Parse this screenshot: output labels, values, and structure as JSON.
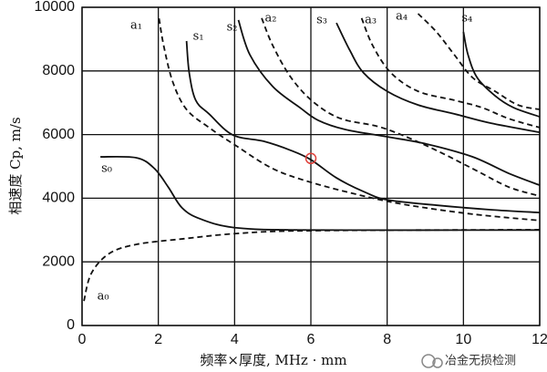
{
  "chart_data": {
    "type": "line",
    "y_label": "相速度 Cp, m/s",
    "x_label": "频率×厚度, MHz · mm",
    "watermark": "冶金无损检测",
    "xlim": [
      0,
      12
    ],
    "xticks": [
      0,
      2,
      4,
      6,
      8,
      10,
      12
    ],
    "ylim": [
      0,
      10000
    ],
    "yticks": [
      0,
      2000,
      4000,
      6000,
      8000,
      10000
    ],
    "grid": true,
    "series": [
      {
        "name": "a₀",
        "color": "#111111",
        "dashed": true,
        "x": [
          0.05,
          0.24,
          0.71,
          1.43,
          2.62,
          4.05,
          6,
          12
        ],
        "values": [
          770,
          1630,
          2260,
          2550,
          2720,
          2890,
          2980,
          3010
        ]
      },
      {
        "name": "s₀",
        "color": "#111111",
        "dashed": false,
        "x": [
          0.48,
          1.43,
          1.9,
          2.26,
          2.62,
          3.1,
          4.05,
          6,
          12
        ],
        "values": [
          5300,
          5270,
          4930,
          4350,
          3700,
          3350,
          3070,
          3000,
          3000
        ]
      },
      {
        "name": "a₁",
        "color": "#111111",
        "dashed": true,
        "x": [
          2.02,
          2.14,
          2.38,
          2.74,
          3.33,
          4.05,
          5,
          6,
          7.38,
          8.57,
          10.24,
          12
        ],
        "values": [
          9650,
          8800,
          7650,
          6790,
          6220,
          5640,
          4930,
          4500,
          4070,
          3780,
          3500,
          3300
        ]
      },
      {
        "name": "s₁",
        "color": "#111111",
        "dashed": false,
        "x": [
          2.74,
          2.81,
          2.98,
          3.33,
          3.95,
          4.76,
          5.48,
          6,
          6.67,
          7.38,
          8,
          9.29,
          10.7,
          12
        ],
        "values": [
          8940,
          7940,
          7080,
          6650,
          5990,
          5790,
          5500,
          5210,
          4640,
          4210,
          3950,
          3780,
          3640,
          3550
        ]
      },
      {
        "name": "s₂",
        "color": "#111111",
        "dashed": false,
        "x": [
          4.1,
          4.4,
          5,
          5.71,
          6.19,
          6.9,
          8,
          9.05,
          10.24,
          11.19,
          12
        ],
        "values": [
          9600,
          8510,
          7510,
          6850,
          6450,
          6160,
          5930,
          5700,
          5300,
          4780,
          4410
        ]
      },
      {
        "name": "a₂",
        "color": "#111111",
        "dashed": true,
        "x": [
          4.71,
          5,
          5.48,
          6.07,
          6.79,
          7.86,
          9.05,
          10.24,
          11.19,
          12
        ],
        "values": [
          9660,
          8800,
          7790,
          7020,
          6500,
          6220,
          5640,
          4930,
          4350,
          4070
        ]
      },
      {
        "name": "s₃",
        "color": "#111111",
        "dashed": false,
        "x": [
          6.67,
          7.02,
          7.38,
          8,
          8.81,
          9.76,
          10.71,
          12
        ],
        "values": [
          9510,
          8650,
          7940,
          7360,
          6930,
          6650,
          6360,
          6070
        ]
      },
      {
        "name": "a₃",
        "color": "#111111",
        "dashed": true,
        "x": [
          7.33,
          7.62,
          8.1,
          8.81,
          9.76,
          10.48,
          11.19,
          12
        ],
        "values": [
          9660,
          8800,
          7940,
          7360,
          7080,
          6850,
          6500,
          6220
        ]
      },
      {
        "name": "a₄",
        "color": "#111111",
        "dashed": true,
        "x": [
          8.81,
          9.29,
          9.76,
          10.24,
          10.83,
          11.43,
          12
        ],
        "values": [
          9800,
          9230,
          8510,
          7790,
          7360,
          6930,
          6790
        ]
      },
      {
        "name": "s₄",
        "color": "#111111",
        "dashed": false,
        "x": [
          10,
          10.12,
          10.36,
          10.83,
          11.31,
          12
        ],
        "values": [
          9230,
          8510,
          7790,
          7220,
          6850,
          6560
        ]
      }
    ],
    "highlight": {
      "x": 6,
      "y": 5250,
      "color": "#e0403a"
    }
  }
}
